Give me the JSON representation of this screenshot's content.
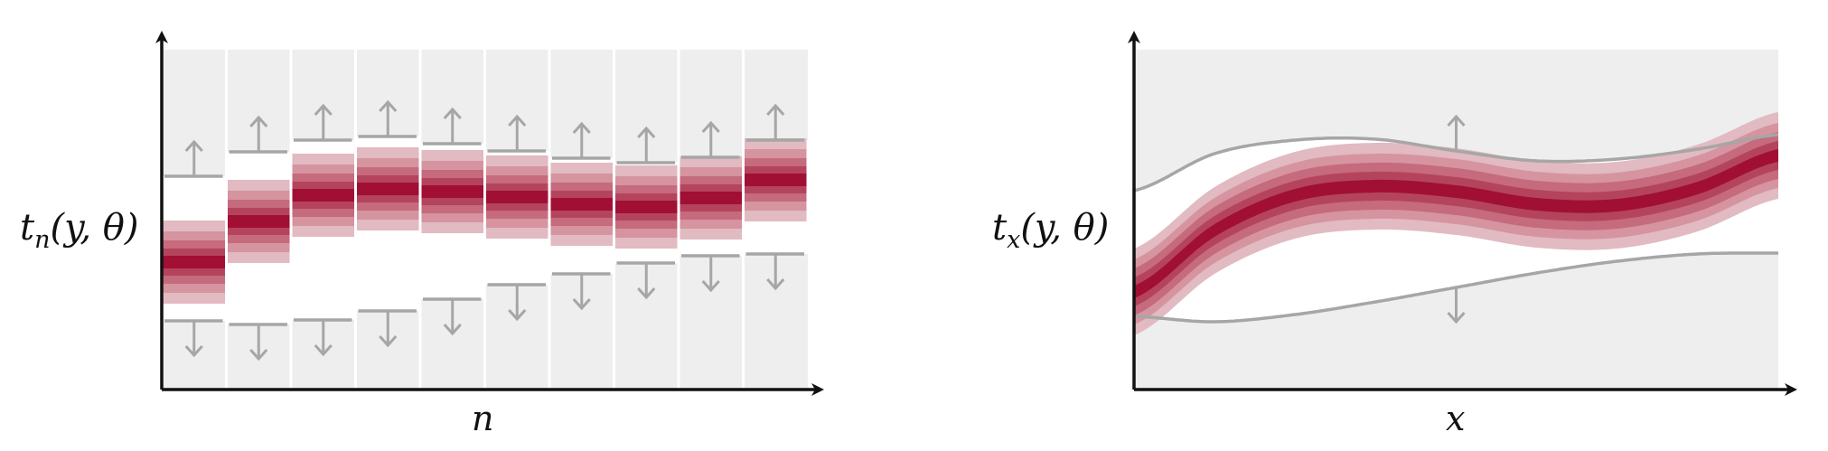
{
  "colors": {
    "background_region": "#eeeeee",
    "separator": "#ffffff",
    "bound_line": "#a6a6a6",
    "band_outer": "#e2bac1",
    "band_2": "#d594a0",
    "band_3": "#c66a7d",
    "band_4": "#b4445c",
    "band_center": "#a10f34",
    "axis": "#111111"
  },
  "left_panel": {
    "ylabel": {
      "base": "t",
      "subscript": "n",
      "args": "(y, θ)"
    },
    "xlabel": "n"
  },
  "right_panel": {
    "ylabel": {
      "base": "t",
      "subscript": "x",
      "args": "(y, θ)"
    },
    "xlabel": "x"
  }
}
